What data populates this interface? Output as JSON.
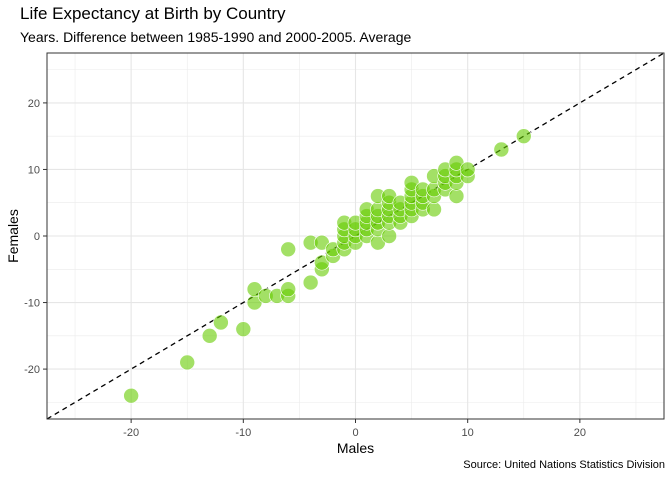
{
  "chart_data": {
    "type": "scatter",
    "title": "Life Expectancy at Birth by Country",
    "subtitle": "Years. Difference between 1985-1990 and 2000-2005. Average",
    "caption": "Source: United Nations Statistics Division",
    "xlabel": "Males",
    "ylabel": "Females",
    "xlim": [
      -27.5,
      27.5
    ],
    "ylim": [
      -27.5,
      27.5
    ],
    "x_ticks": [
      -20,
      -10,
      0,
      10,
      20
    ],
    "x_tick_labels": [
      "-20",
      "-10",
      "0",
      "10",
      "20"
    ],
    "y_ticks": [
      -20,
      -10,
      0,
      10,
      20
    ],
    "y_tick_labels": [
      "-20",
      "-10",
      "0",
      "10",
      "20"
    ],
    "grid": true,
    "reference_line": {
      "slope": 1,
      "intercept": 0,
      "style": "dashed"
    },
    "point_color": "#66cc00",
    "points": [
      {
        "x": -20,
        "y": -24
      },
      {
        "x": -15,
        "y": -19
      },
      {
        "x": -13,
        "y": -15
      },
      {
        "x": -12,
        "y": -13
      },
      {
        "x": -10,
        "y": -14
      },
      {
        "x": -9,
        "y": -10
      },
      {
        "x": -9,
        "y": -8
      },
      {
        "x": -8,
        "y": -9
      },
      {
        "x": -7,
        "y": -9
      },
      {
        "x": -6,
        "y": -9
      },
      {
        "x": -6,
        "y": -8
      },
      {
        "x": -6,
        "y": -2
      },
      {
        "x": -4,
        "y": -7
      },
      {
        "x": -4,
        "y": -1
      },
      {
        "x": -3,
        "y": -5
      },
      {
        "x": -3,
        "y": -4
      },
      {
        "x": -3,
        "y": -1
      },
      {
        "x": -2,
        "y": -3
      },
      {
        "x": -2,
        "y": -2
      },
      {
        "x": -1,
        "y": -2
      },
      {
        "x": -1,
        "y": -1
      },
      {
        "x": -1,
        "y": 0
      },
      {
        "x": -1,
        "y": 1
      },
      {
        "x": -1,
        "y": 2
      },
      {
        "x": 0,
        "y": -1
      },
      {
        "x": 0,
        "y": 0
      },
      {
        "x": 0,
        "y": 1
      },
      {
        "x": 0,
        "y": 2
      },
      {
        "x": 1,
        "y": 0
      },
      {
        "x": 1,
        "y": 1
      },
      {
        "x": 1,
        "y": 2
      },
      {
        "x": 1,
        "y": 3
      },
      {
        "x": 1,
        "y": 4
      },
      {
        "x": 2,
        "y": -1
      },
      {
        "x": 2,
        "y": 1
      },
      {
        "x": 2,
        "y": 2
      },
      {
        "x": 2,
        "y": 3
      },
      {
        "x": 2,
        "y": 4
      },
      {
        "x": 2,
        "y": 6
      },
      {
        "x": 3,
        "y": 0
      },
      {
        "x": 3,
        "y": 2
      },
      {
        "x": 3,
        "y": 3
      },
      {
        "x": 3,
        "y": 4
      },
      {
        "x": 3,
        "y": 5
      },
      {
        "x": 3,
        "y": 6
      },
      {
        "x": 4,
        "y": 2
      },
      {
        "x": 4,
        "y": 3
      },
      {
        "x": 4,
        "y": 4
      },
      {
        "x": 4,
        "y": 5
      },
      {
        "x": 5,
        "y": 3
      },
      {
        "x": 5,
        "y": 4
      },
      {
        "x": 5,
        "y": 5
      },
      {
        "x": 5,
        "y": 6
      },
      {
        "x": 5,
        "y": 7
      },
      {
        "x": 5,
        "y": 8
      },
      {
        "x": 6,
        "y": 4
      },
      {
        "x": 6,
        "y": 5
      },
      {
        "x": 6,
        "y": 6
      },
      {
        "x": 6,
        "y": 7
      },
      {
        "x": 7,
        "y": 4
      },
      {
        "x": 7,
        "y": 6
      },
      {
        "x": 7,
        "y": 7
      },
      {
        "x": 7,
        "y": 9
      },
      {
        "x": 8,
        "y": 7
      },
      {
        "x": 8,
        "y": 8
      },
      {
        "x": 8,
        "y": 9
      },
      {
        "x": 8,
        "y": 10
      },
      {
        "x": 9,
        "y": 6
      },
      {
        "x": 9,
        "y": 8
      },
      {
        "x": 9,
        "y": 9
      },
      {
        "x": 9,
        "y": 10
      },
      {
        "x": 9,
        "y": 11
      },
      {
        "x": 10,
        "y": 9
      },
      {
        "x": 10,
        "y": 10
      },
      {
        "x": 13,
        "y": 13
      },
      {
        "x": 15,
        "y": 15
      }
    ]
  }
}
